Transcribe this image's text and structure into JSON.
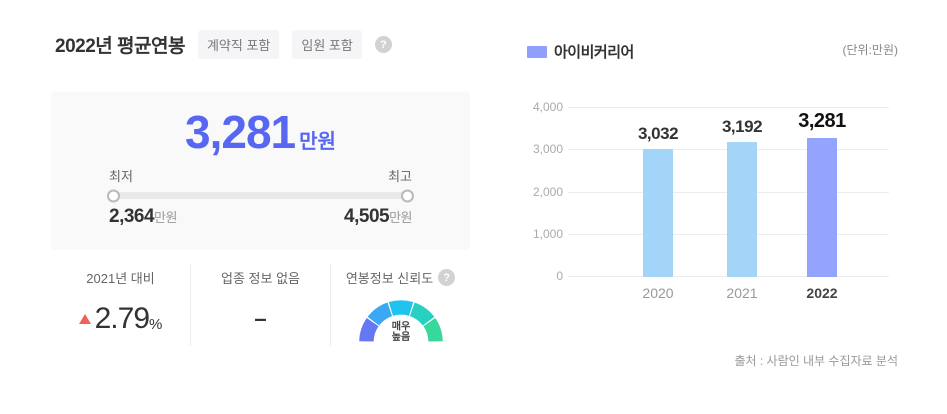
{
  "colors": {
    "accent": "#5767f1",
    "up_red": "#ef6255",
    "legend": "#8f9ffb",
    "bar_default": "#a2d5f8",
    "bar_highlight": "#94a3fc"
  },
  "left_panel": {
    "title": "2022년 평균연봉",
    "tags": [
      "계약직 포함",
      "임원 포함"
    ],
    "help_glyph": "?",
    "salary_card": {
      "average_value": "3,281",
      "unit": "만원",
      "min_label": "최저",
      "max_label": "최고",
      "min_value": "2,364",
      "min_unit": "만원",
      "max_value": "4,505",
      "max_unit": "만원"
    },
    "stats": {
      "yoy": {
        "label": "2021년 대비",
        "direction": "up",
        "value": "2.79",
        "unit": "%"
      },
      "industry": {
        "label": "업종 정보 없음",
        "value": "–"
      },
      "reliability": {
        "label": "연봉정보 신뢰도",
        "value": "매우 높음",
        "value_lines": [
          "매우",
          "높음"
        ],
        "gauge_segments_filled": 5,
        "segment_colors": [
          "#6577f2",
          "#3aa8f3",
          "#1fc4ee",
          "#27d0c0",
          "#38d89c"
        ]
      }
    }
  },
  "right_panel": {
    "legend": {
      "label": "아이비커리어"
    },
    "unit_note": "(단위:만원)",
    "source": "출처 : 사람인 내부 수집자료 분석",
    "chart_data": {
      "type": "bar",
      "categories": [
        "2020",
        "2021",
        "2022"
      ],
      "values": [
        3032,
        3192,
        3281
      ],
      "value_labels": [
        "3,032",
        "3,192",
        "3,281"
      ],
      "series_name": "아이비커리어",
      "ylabel": "만원",
      "ylim": [
        0,
        4000
      ],
      "yticks": [
        0,
        1000,
        2000,
        3000,
        4000
      ],
      "ytick_labels": [
        "0",
        "1,000",
        "2,000",
        "3,000",
        "4,000"
      ],
      "bar_colors": [
        "#a2d5f8",
        "#a2d5f8",
        "#94a3fc"
      ],
      "highlight_index": 2,
      "grid": true,
      "legend_position": "top-left"
    }
  }
}
